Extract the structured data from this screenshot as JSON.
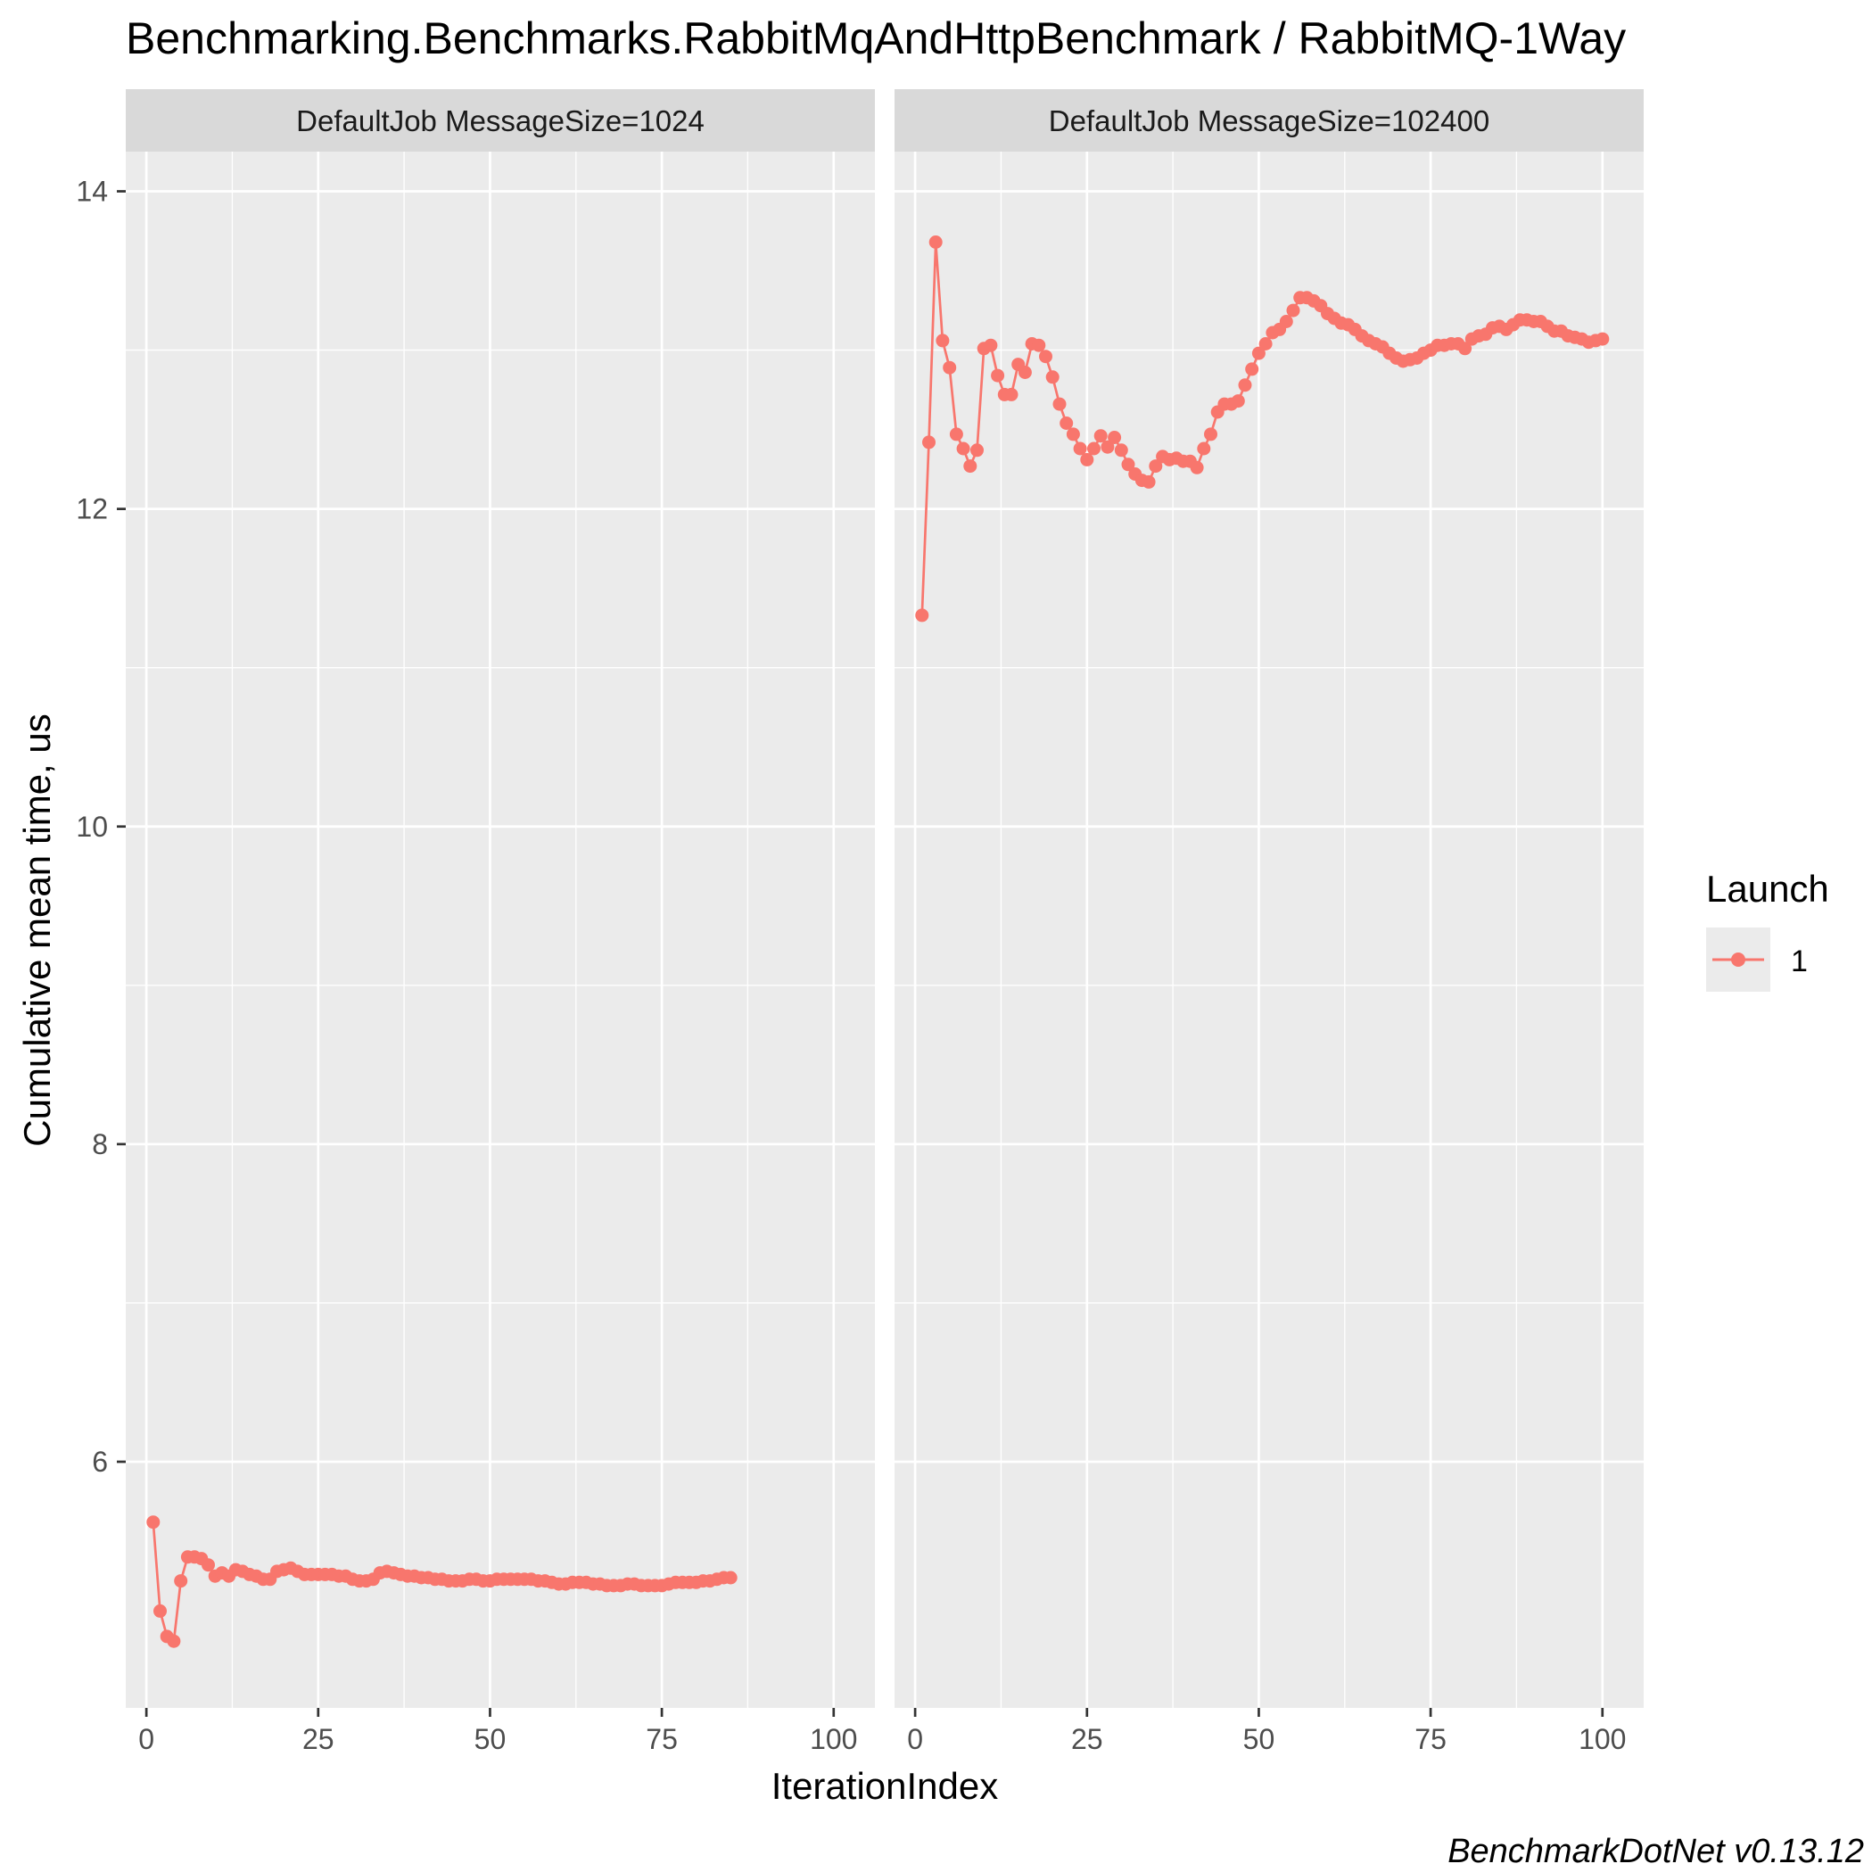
{
  "chart_data": {
    "type": "line",
    "title": "Benchmarking.Benchmarks.RabbitMqAndHttpBenchmark / RabbitMQ-1Way",
    "xlabel": "IterationIndex",
    "ylabel": "Cumulative mean time, us",
    "caption": "BenchmarkDotNet v0.13.12",
    "xlim": [
      -3,
      106
    ],
    "ylim": [
      4.45,
      14.25
    ],
    "x_ticks": [
      0,
      25,
      50,
      75,
      100
    ],
    "x_tick_labels": [
      "0",
      "25",
      "50",
      "75",
      "100"
    ],
    "y_ticks": [
      6,
      8,
      10,
      12,
      14
    ],
    "y_tick_labels": [
      "6",
      "8",
      "10",
      "12",
      "14"
    ],
    "grid": true,
    "legend": {
      "title": "Launch",
      "position": "right",
      "entries": [
        {
          "label": "1",
          "color": "#F8766D"
        }
      ]
    },
    "colors": {
      "series": "#F8766D",
      "panel_bg": "#EBEBEB",
      "strip_bg": "#D9D9D9",
      "grid": "#FFFFFF"
    },
    "panels": [
      {
        "strip_label": "DefaultJob MessageSize=1024",
        "series": [
          {
            "name": "1",
            "x": [
              1,
              2,
              3,
              4,
              5,
              6,
              7,
              8,
              9,
              10,
              11,
              12,
              13,
              14,
              15,
              16,
              17,
              18,
              19,
              20,
              21,
              22,
              23,
              24,
              25,
              26,
              27,
              28,
              29,
              30,
              31,
              32,
              33,
              34,
              35,
              36,
              37,
              38,
              39,
              40,
              41,
              42,
              43,
              44,
              45,
              46,
              47,
              48,
              49,
              50,
              51,
              52,
              53,
              54,
              55,
              56,
              57,
              58,
              59,
              60,
              61,
              62,
              63,
              64,
              65,
              66,
              67,
              68,
              69,
              70,
              71,
              72,
              73,
              74,
              75,
              76,
              77,
              78,
              79,
              80,
              81,
              82,
              83,
              84,
              85
            ],
            "y": [
              5.62,
              5.06,
              4.9,
              4.87,
              5.25,
              5.4,
              5.4,
              5.39,
              5.35,
              5.28,
              5.3,
              5.28,
              5.32,
              5.31,
              5.29,
              5.28,
              5.26,
              5.26,
              5.31,
              5.32,
              5.33,
              5.31,
              5.29,
              5.29,
              5.29,
              5.29,
              5.29,
              5.28,
              5.28,
              5.26,
              5.25,
              5.25,
              5.26,
              5.3,
              5.31,
              5.3,
              5.29,
              5.28,
              5.28,
              5.27,
              5.27,
              5.26,
              5.26,
              5.25,
              5.25,
              5.25,
              5.26,
              5.26,
              5.25,
              5.25,
              5.26,
              5.26,
              5.26,
              5.26,
              5.26,
              5.26,
              5.25,
              5.25,
              5.24,
              5.23,
              5.23,
              5.24,
              5.24,
              5.24,
              5.23,
              5.23,
              5.22,
              5.22,
              5.22,
              5.23,
              5.23,
              5.22,
              5.22,
              5.22,
              5.22,
              5.23,
              5.24,
              5.24,
              5.24,
              5.24,
              5.25,
              5.25,
              5.26,
              5.27,
              5.27
            ]
          }
        ]
      },
      {
        "strip_label": "DefaultJob MessageSize=102400",
        "series": [
          {
            "name": "1",
            "x": [
              1,
              2,
              3,
              4,
              5,
              6,
              7,
              8,
              9,
              10,
              11,
              12,
              13,
              14,
              15,
              16,
              17,
              18,
              19,
              20,
              21,
              22,
              23,
              24,
              25,
              26,
              27,
              28,
              29,
              30,
              31,
              32,
              33,
              34,
              35,
              36,
              37,
              38,
              39,
              40,
              41,
              42,
              43,
              44,
              45,
              46,
              47,
              48,
              49,
              50,
              51,
              52,
              53,
              54,
              55,
              56,
              57,
              58,
              59,
              60,
              61,
              62,
              63,
              64,
              65,
              66,
              67,
              68,
              69,
              70,
              71,
              72,
              73,
              74,
              75,
              76,
              77,
              78,
              79,
              80,
              81,
              82,
              83,
              84,
              85,
              86,
              87,
              88,
              89,
              90,
              91,
              92,
              93,
              94,
              95,
              96,
              97,
              98,
              99,
              100
            ],
            "y": [
              11.33,
              12.42,
              13.68,
              13.06,
              12.89,
              12.47,
              12.38,
              12.27,
              12.37,
              13.01,
              13.03,
              12.84,
              12.72,
              12.72,
              12.91,
              12.86,
              13.04,
              13.03,
              12.96,
              12.83,
              12.66,
              12.54,
              12.47,
              12.38,
              12.31,
              12.38,
              12.46,
              12.39,
              12.45,
              12.37,
              12.28,
              12.22,
              12.18,
              12.17,
              12.27,
              12.33,
              12.31,
              12.32,
              12.3,
              12.3,
              12.26,
              12.38,
              12.47,
              12.61,
              12.66,
              12.66,
              12.68,
              12.78,
              12.88,
              12.98,
              13.04,
              13.11,
              13.13,
              13.18,
              13.25,
              13.33,
              13.33,
              13.31,
              13.28,
              13.23,
              13.2,
              13.17,
              13.16,
              13.13,
              13.09,
              13.06,
              13.04,
              13.02,
              12.98,
              12.95,
              12.93,
              12.94,
              12.95,
              12.98,
              13.0,
              13.03,
              13.03,
              13.04,
              13.04,
              13.01,
              13.07,
              13.09,
              13.1,
              13.14,
              13.15,
              13.13,
              13.16,
              13.19,
              13.19,
              13.18,
              13.18,
              13.15,
              13.12,
              13.12,
              13.09,
              13.08,
              13.07,
              13.05,
              13.06,
              13.07
            ]
          }
        ]
      }
    ]
  }
}
